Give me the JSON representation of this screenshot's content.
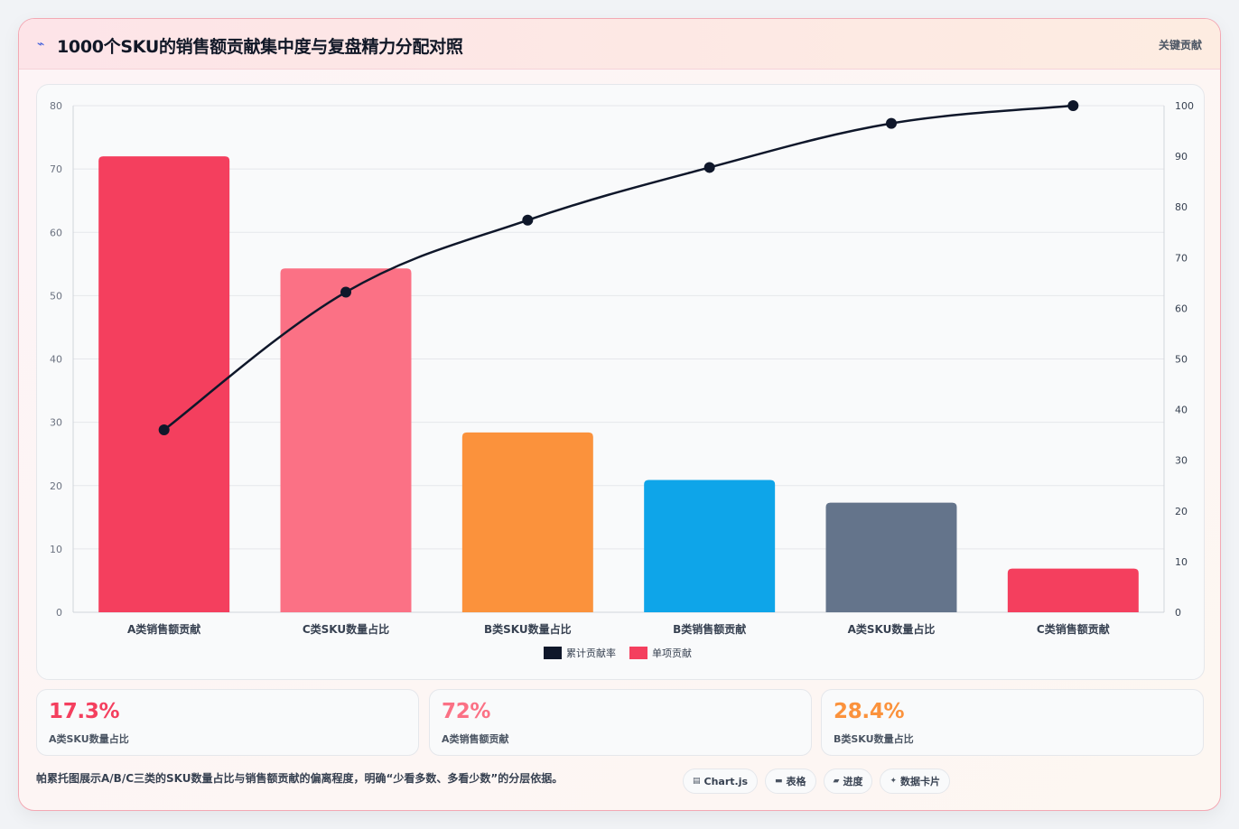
{
  "header": {
    "title": "1000个SKU的销售额贡献集中度与复盘精力分配对照",
    "tag": "关键贡献",
    "icon": "lightning-icon"
  },
  "chart_data": {
    "type": "bar",
    "categories": [
      "A类销售额贡献",
      "C类SKU数量占比",
      "B类SKU数量占比",
      "B类销售额贡献",
      "A类SKU数量占比",
      "C类销售额贡献"
    ],
    "series": [
      {
        "name": "单项贡献",
        "type": "bar",
        "axis": "left",
        "values": [
          72,
          54.3,
          28.4,
          20.9,
          17.3,
          6.9
        ],
        "colors": [
          "#f43f5e",
          "#fb7185",
          "#fb923c",
          "#0ea5e9",
          "#64748b",
          "#f43f5e"
        ]
      },
      {
        "name": "累计贡献率",
        "type": "line",
        "axis": "right",
        "values": [
          36,
          63.2,
          77.4,
          87.8,
          96.5,
          100
        ],
        "color": "#0f172a"
      }
    ],
    "ylim": [
      0,
      80
    ],
    "yticks": [
      "0",
      "10",
      "20",
      "30",
      "40",
      "50",
      "60",
      "70",
      "80"
    ],
    "y2lim": [
      0,
      100
    ],
    "y2ticks": [
      "0",
      "10",
      "20",
      "30",
      "40",
      "50",
      "60",
      "70",
      "80",
      "90",
      "100"
    ],
    "grid": true,
    "legend": "bottom-center"
  },
  "stats": [
    {
      "value": "17.3%",
      "label": "A类SKU数量占比",
      "color": "#f43f5e"
    },
    {
      "value": "72%",
      "label": "A类销售额贡献",
      "color": "#fb7185"
    },
    {
      "value": "28.4%",
      "label": "B类SKU数量占比",
      "color": "#fb923c"
    }
  ],
  "footer": {
    "text": "帕累托图展示A/B/C三类的SKU数量占比与销售额贡献的偏离程度，明确“少看多数、多看少数”的分层依据。",
    "chips": [
      {
        "icon": "chart-icon",
        "glyph": "▤",
        "label": "Chart.js"
      },
      {
        "icon": "table-icon",
        "glyph": "▬",
        "label": "表格"
      },
      {
        "icon": "progress-icon",
        "glyph": "▰",
        "label": "进度"
      },
      {
        "icon": "sparkle-icon",
        "glyph": "✦",
        "label": "数据卡片"
      }
    ]
  }
}
